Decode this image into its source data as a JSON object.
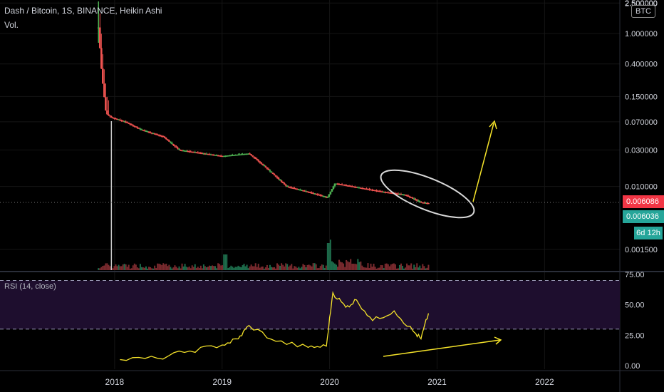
{
  "header": {
    "title": "Dash / Bitcoin, 1S, BINANCE, Heikin Ashi",
    "volume_label": "Vol."
  },
  "price_axis": {
    "currency_label": "BTC",
    "ticks": [
      {
        "label": "2.500000",
        "value": 2.5
      },
      {
        "label": "1.000000",
        "value": 1.0
      },
      {
        "label": "0.400000",
        "value": 0.4
      },
      {
        "label": "0.150000",
        "value": 0.15
      },
      {
        "label": "0.070000",
        "value": 0.07
      },
      {
        "label": "0.030000",
        "value": 0.03
      },
      {
        "label": "0.010000",
        "value": 0.01
      },
      {
        "label": "0.001500",
        "value": 0.0015
      }
    ],
    "current_price_label": "0.006086",
    "current_price_color": "#f23645",
    "last_price_label": "0.006036",
    "last_price_color": "#26a69a",
    "countdown": "6d 12h"
  },
  "rsi": {
    "label": "RSI (14, close)",
    "ticks": [
      {
        "label": "75.00",
        "value": 75
      },
      {
        "label": "50.00",
        "value": 50
      },
      {
        "label": "25.00",
        "value": 25
      },
      {
        "label": "0.00",
        "value": 0
      }
    ],
    "upper_band": 70,
    "lower_band": 30,
    "line_color": "#f5e32a",
    "band_fill": "#1e0e2e"
  },
  "time_axis": {
    "ticks": [
      {
        "label": "2018"
      },
      {
        "label": "2019"
      },
      {
        "label": "2020"
      },
      {
        "label": "2021"
      },
      {
        "label": "2022"
      }
    ]
  },
  "colors": {
    "up": "#26a69a",
    "up_bright": "#4caf50",
    "down": "#ef5350",
    "annotation_yellow": "#f5e32a",
    "annotation_white": "#d8d8d8"
  },
  "chart_data": {
    "type": "line",
    "title": "Dash / Bitcoin, 1S, BINANCE, Heikin Ashi",
    "xlabel": "",
    "ylabel": "",
    "log_scale": true,
    "x_ticks": [
      "2018",
      "2019",
      "2020",
      "2021",
      "2022"
    ],
    "series": [
      {
        "values": [
          {
            "x": 2017.85,
            "y": 1.2
          },
          {
            "x": 2017.88,
            "y": 0.3
          },
          {
            "x": 2017.92,
            "y": 0.09
          },
          {
            "x": 2017.97,
            "y": 0.08
          },
          {
            "x": 2018.1,
            "y": 0.07
          },
          {
            "x": 2018.25,
            "y": 0.055
          },
          {
            "x": 2018.45,
            "y": 0.045
          },
          {
            "x": 2018.6,
            "y": 0.03
          },
          {
            "x": 2018.75,
            "y": 0.028
          },
          {
            "x": 2019.0,
            "y": 0.025
          },
          {
            "x": 2019.25,
            "y": 0.027
          },
          {
            "x": 2019.4,
            "y": 0.018
          },
          {
            "x": 2019.6,
            "y": 0.01
          },
          {
            "x": 2019.8,
            "y": 0.0085
          },
          {
            "x": 2019.98,
            "y": 0.0072
          },
          {
            "x": 2020.05,
            "y": 0.011
          },
          {
            "x": 2020.3,
            "y": 0.0095
          },
          {
            "x": 2020.5,
            "y": 0.0085
          },
          {
            "x": 2020.7,
            "y": 0.0078
          },
          {
            "x": 2020.85,
            "y": 0.0062
          },
          {
            "x": 2020.92,
            "y": 0.00604
          }
        ]
      }
    ],
    "rsi_values": [
      {
        "x": 2018.05,
        "y": 5
      },
      {
        "x": 2018.4,
        "y": 6
      },
      {
        "x": 2018.7,
        "y": 12
      },
      {
        "x": 2019.0,
        "y": 17
      },
      {
        "x": 2019.15,
        "y": 22
      },
      {
        "x": 2019.25,
        "y": 33
      },
      {
        "x": 2019.5,
        "y": 20
      },
      {
        "x": 2019.8,
        "y": 15
      },
      {
        "x": 2019.97,
        "y": 16
      },
      {
        "x": 2020.03,
        "y": 60
      },
      {
        "x": 2020.15,
        "y": 48
      },
      {
        "x": 2020.25,
        "y": 54
      },
      {
        "x": 2020.4,
        "y": 37
      },
      {
        "x": 2020.6,
        "y": 45
      },
      {
        "x": 2020.78,
        "y": 28
      },
      {
        "x": 2020.85,
        "y": 22
      },
      {
        "x": 2020.92,
        "y": 43
      }
    ]
  }
}
